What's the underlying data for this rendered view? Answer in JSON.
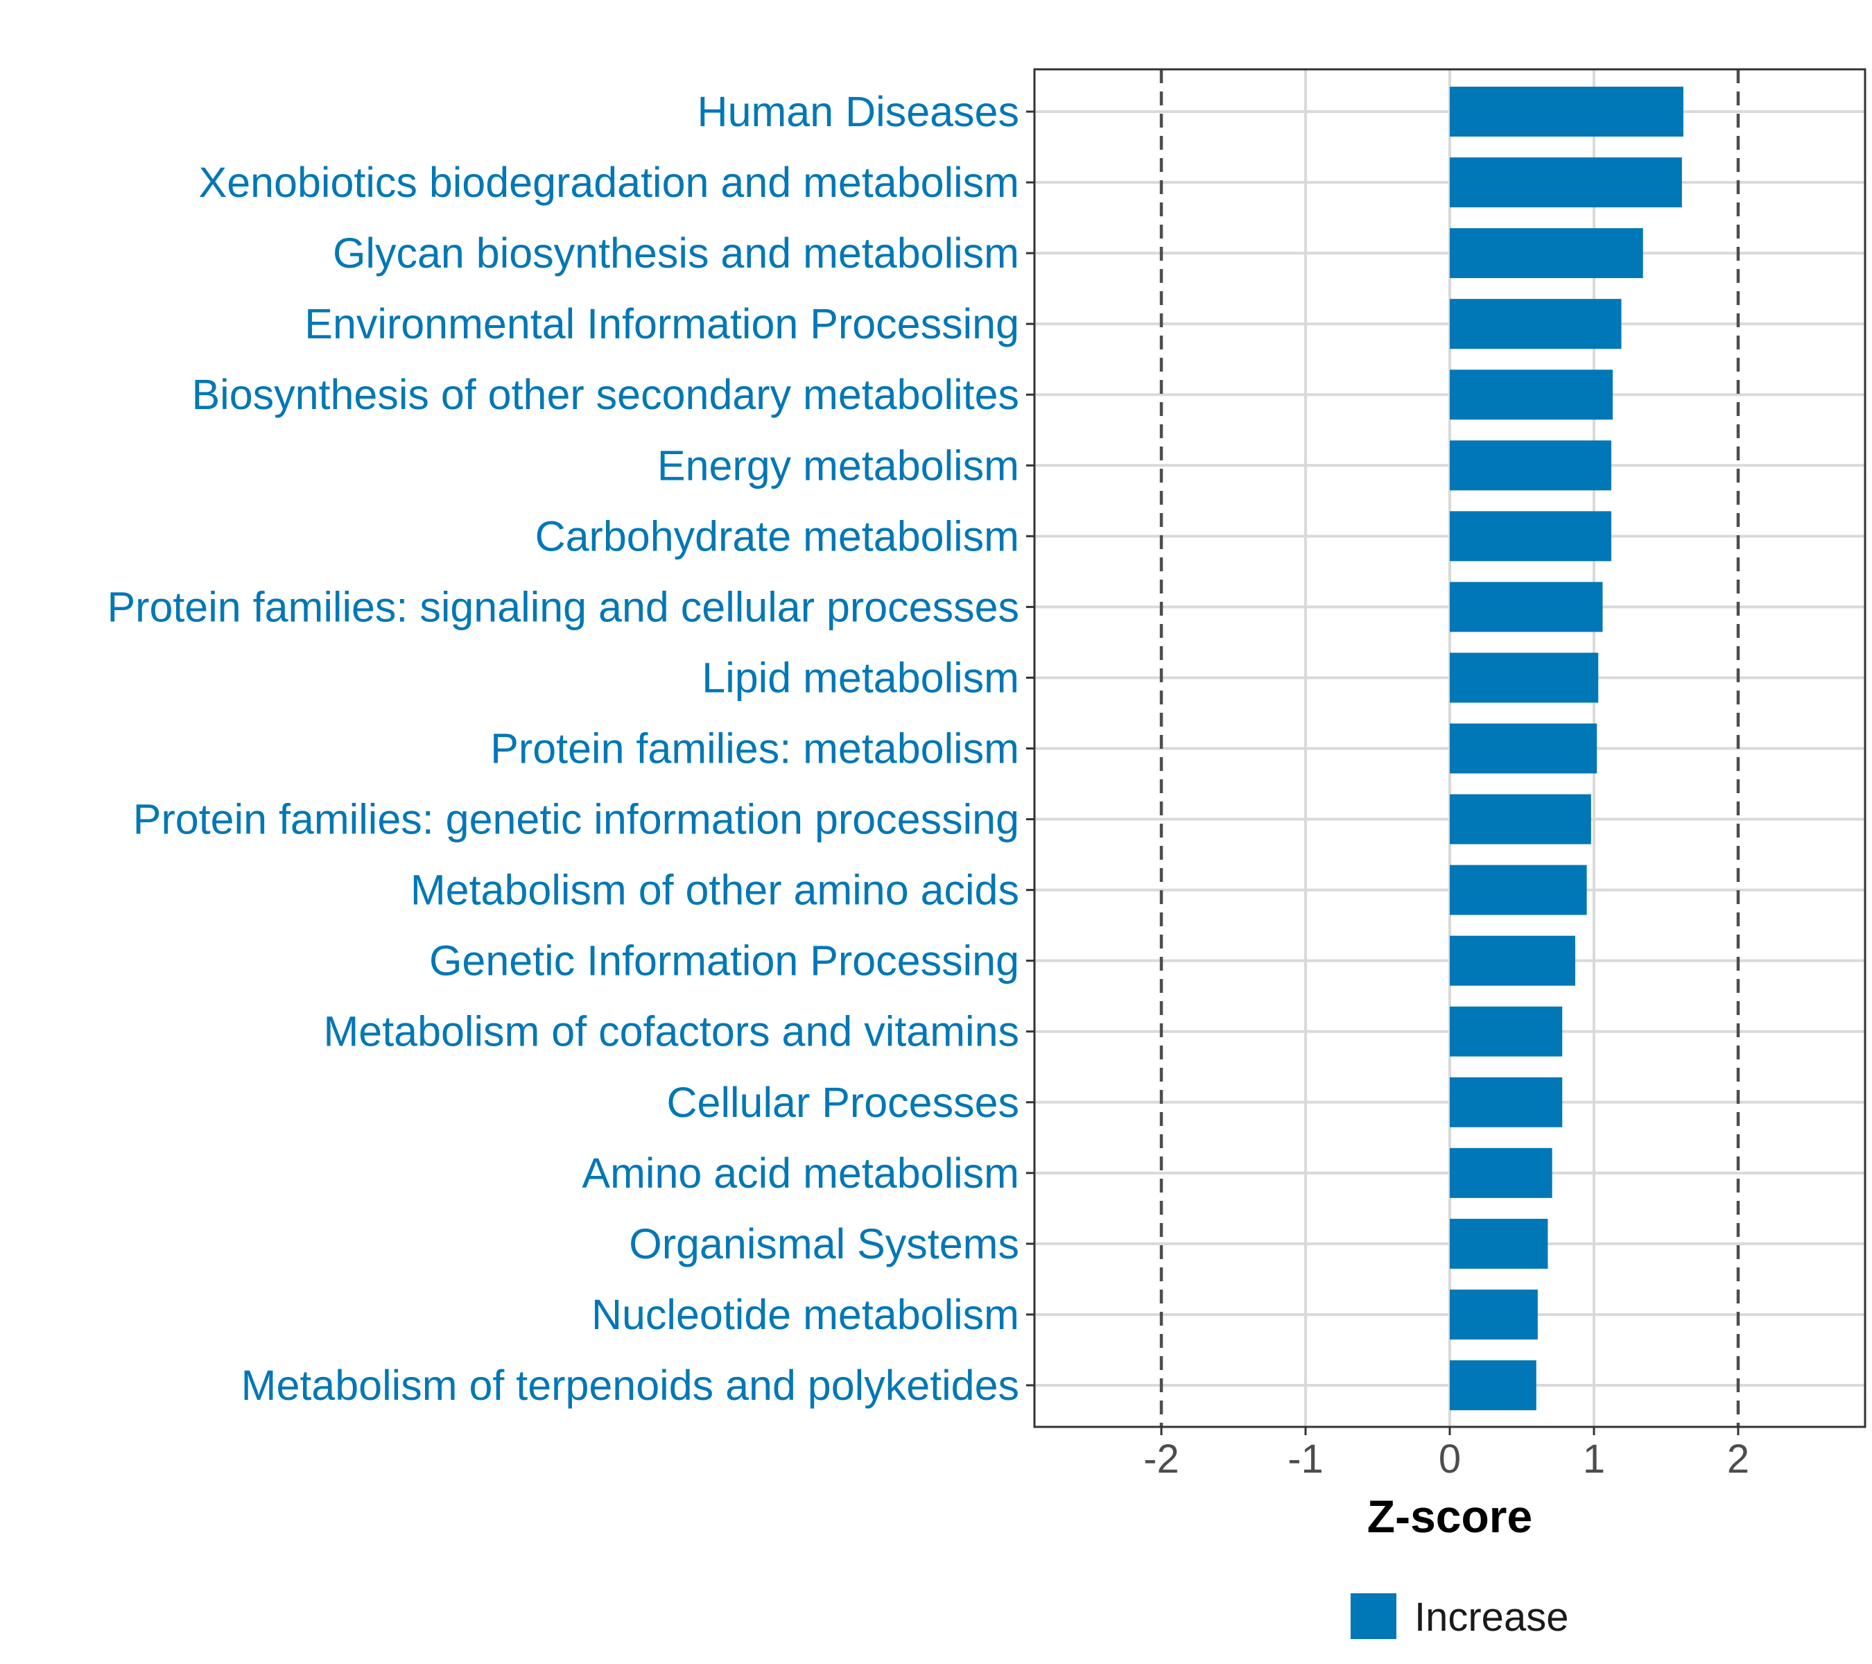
{
  "chart_data": {
    "type": "bar",
    "orientation": "horizontal",
    "categories": [
      "Human Diseases",
      "Xenobiotics biodegradation and metabolism",
      "Glycan biosynthesis and metabolism",
      "Environmental Information Processing",
      "Biosynthesis of other secondary metabolites",
      "Energy metabolism",
      "Carbohydrate metabolism",
      "Protein families: signaling and cellular processes",
      "Lipid metabolism",
      "Protein families: metabolism",
      "Protein families: genetic information processing",
      "Metabolism of other amino acids",
      "Genetic Information Processing",
      "Metabolism of cofactors and vitamins",
      "Cellular Processes",
      "Amino acid metabolism",
      "Organismal Systems",
      "Nucleotide metabolism",
      "Metabolism of terpenoids and polyketides"
    ],
    "series": [
      {
        "name": "Increase",
        "color": "#0077b6",
        "values": [
          1.62,
          1.61,
          1.34,
          1.19,
          1.13,
          1.12,
          1.12,
          1.06,
          1.03,
          1.02,
          0.98,
          0.95,
          0.87,
          0.78,
          0.78,
          0.71,
          0.68,
          0.61,
          0.6
        ]
      }
    ],
    "xlabel": "Z-score",
    "ylabel": "",
    "xlim": [
      -2.88,
      2.88
    ],
    "xticks": [
      -2,
      -1,
      0,
      1,
      2
    ],
    "xtick_labels": [
      "-2",
      "-1",
      "0",
      "1",
      "2"
    ],
    "reference_lines": [
      -2,
      2
    ],
    "grid": true,
    "legend": {
      "position": "bottom",
      "entries": [
        "Increase"
      ]
    },
    "colors": {
      "bar": "#0077b6",
      "category_text": "#0077b6",
      "grid": "#d9d9d9",
      "reference_line": "#4d4d4d",
      "panel_border": "#333333",
      "tick_text": "#4d4d4d"
    }
  }
}
